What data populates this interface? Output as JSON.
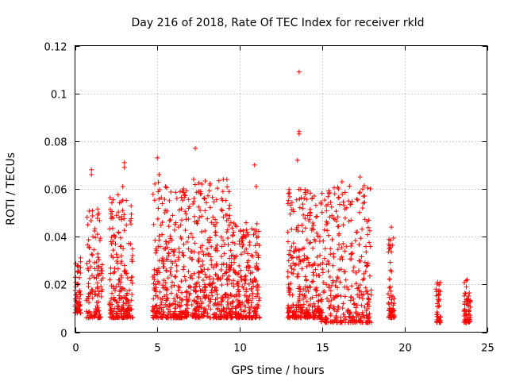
{
  "chart_data": {
    "type": "scatter",
    "title": "Day 216 of 2018, Rate Of TEC Index for receiver rkld",
    "xlabel": "GPS time / hours",
    "ylabel": "ROTI / TECUs",
    "xlim": [
      0,
      25
    ],
    "ylim": [
      0,
      0.12
    ],
    "x_ticks": [
      0,
      5,
      10,
      15,
      20,
      25
    ],
    "y_ticks": [
      0,
      0.02,
      0.04,
      0.06,
      0.08,
      0.1,
      0.12
    ],
    "x_tick_labels": [
      "0",
      "5",
      "10",
      "15",
      "20",
      "25"
    ],
    "y_tick_labels": [
      "0",
      "0.02",
      "0.04",
      "0.06",
      "0.08",
      "0.1",
      "0.12"
    ],
    "grid": true,
    "marker": "+",
    "color": "#ff0000",
    "clusters": [
      {
        "x_range": [
          0.0,
          0.35
        ],
        "y_base": 0.008,
        "y_top": 0.032,
        "density": 60
      },
      {
        "x_range": [
          0.7,
          1.7
        ],
        "y_base": 0.006,
        "y_top": 0.052,
        "density": 120
      },
      {
        "x_range": [
          2.1,
          3.5
        ],
        "y_base": 0.006,
        "y_top": 0.058,
        "density": 220
      },
      {
        "x_range": [
          4.7,
          7.0
        ],
        "y_base": 0.006,
        "y_top": 0.064,
        "density": 320
      },
      {
        "x_range": [
          7.0,
          9.4
        ],
        "y_base": 0.006,
        "y_top": 0.064,
        "density": 340
      },
      {
        "x_range": [
          9.4,
          11.2
        ],
        "y_base": 0.006,
        "y_top": 0.046,
        "density": 260
      },
      {
        "x_range": [
          12.9,
          14.9
        ],
        "y_base": 0.006,
        "y_top": 0.06,
        "density": 300
      },
      {
        "x_range": [
          14.9,
          18.0
        ],
        "y_base": 0.004,
        "y_top": 0.062,
        "density": 330
      },
      {
        "x_range": [
          19.0,
          19.4
        ],
        "y_base": 0.006,
        "y_top": 0.04,
        "density": 60
      },
      {
        "x_range": [
          21.9,
          22.2
        ],
        "y_base": 0.004,
        "y_top": 0.022,
        "density": 40
      },
      {
        "x_range": [
          23.6,
          24.0
        ],
        "y_base": 0.004,
        "y_top": 0.022,
        "density": 60
      }
    ],
    "outliers": [
      {
        "x": 13.6,
        "y": 0.109
      },
      {
        "x": 13.6,
        "y": 0.084
      },
      {
        "x": 13.6,
        "y": 0.083
      },
      {
        "x": 7.3,
        "y": 0.077
      },
      {
        "x": 5.0,
        "y": 0.073
      },
      {
        "x": 13.5,
        "y": 0.072
      },
      {
        "x": 3.0,
        "y": 0.071
      },
      {
        "x": 10.9,
        "y": 0.07
      },
      {
        "x": 1.0,
        "y": 0.068
      },
      {
        "x": 3.0,
        "y": 0.069
      },
      {
        "x": 1.0,
        "y": 0.066
      },
      {
        "x": 5.1,
        "y": 0.066
      },
      {
        "x": 17.3,
        "y": 0.065
      },
      {
        "x": 7.2,
        "y": 0.064
      },
      {
        "x": 9.0,
        "y": 0.064
      },
      {
        "x": 16.2,
        "y": 0.063
      },
      {
        "x": 11.0,
        "y": 0.061
      },
      {
        "x": 2.9,
        "y": 0.061
      },
      {
        "x": 19.2,
        "y": 0.044
      },
      {
        "x": 22.0,
        "y": 0.021
      },
      {
        "x": 23.8,
        "y": 0.022
      }
    ]
  }
}
